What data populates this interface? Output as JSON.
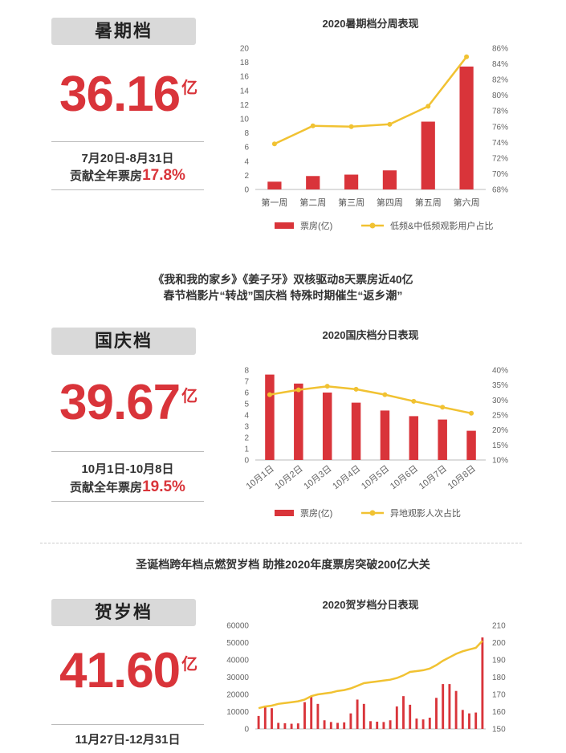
{
  "summer": {
    "label": "暑期档",
    "amount": "36.16",
    "unit": "亿",
    "dates": "7月20日-8月31日",
    "contrib_prefix": "贡献全年票房",
    "contrib_value": "17.8%"
  },
  "caption1": {
    "line1": "《我和我的家乡》《姜子牙》双核驱动8天票房近40亿",
    "line2": "春节档影片“转战”国庆档 特殊时期催生“返乡潮”"
  },
  "national": {
    "label": "国庆档",
    "amount": "39.67",
    "unit": "亿",
    "dates": "10月1日-10月8日",
    "contrib_prefix": "贡献全年票房",
    "contrib_value": "19.5%"
  },
  "caption2": {
    "line1": "圣诞档跨年档点燃贺岁档 助推2020年度票房突破200亿大关"
  },
  "newyear": {
    "label": "贺岁档",
    "amount": "41.60",
    "unit": "亿",
    "dates": "11月27日-12月31日"
  },
  "colors": {
    "bar": "#d9343a",
    "line": "#f1c232"
  },
  "chart_data": [
    {
      "type": "bar",
      "title": "2020暑期档分周表现",
      "categories": [
        "第一周",
        "第二周",
        "第三周",
        "第四周",
        "第五周",
        "第六周"
      ],
      "series": [
        {
          "name": "票房(亿)",
          "type": "bar",
          "axis": "left",
          "values": [
            1.1,
            1.9,
            2.1,
            2.7,
            9.6,
            17.4
          ]
        },
        {
          "name": "低频&中低频观影用户占比",
          "type": "line",
          "axis": "right",
          "values": [
            73.8,
            76.1,
            76.0,
            76.3,
            78.6,
            84.9
          ]
        }
      ],
      "ylim": [
        0,
        20
      ],
      "yticks": [
        "0",
        "2",
        "4",
        "6",
        "8",
        "10",
        "12",
        "14",
        "16",
        "18",
        "20"
      ],
      "y2lim": [
        68,
        86
      ],
      "y2ticks": [
        "68%",
        "70%",
        "72%",
        "74%",
        "76%",
        "78%",
        "80%",
        "82%",
        "84%",
        "86%"
      ],
      "legend": "bottom",
      "grid": false
    },
    {
      "type": "bar",
      "title": "2020国庆档分日表现",
      "categories": [
        "10月1日",
        "10月2日",
        "10月3日",
        "10月4日",
        "10月5日",
        "10月6日",
        "10月7日",
        "10月8日"
      ],
      "series": [
        {
          "name": "票房(亿)",
          "type": "bar",
          "axis": "left",
          "values": [
            7.6,
            6.8,
            6.0,
            5.1,
            4.4,
            3.9,
            3.6,
            2.6
          ]
        },
        {
          "name": "异地观影人次占比",
          "type": "line",
          "axis": "right",
          "values": [
            31.8,
            33.4,
            34.6,
            33.6,
            31.8,
            29.6,
            27.6,
            25.6
          ]
        }
      ],
      "ylim": [
        0,
        8
      ],
      "yticks": [
        "0",
        "1",
        "2",
        "3",
        "4",
        "5",
        "6",
        "7",
        "8"
      ],
      "y2lim": [
        10,
        40
      ],
      "y2ticks": [
        "10%",
        "15%",
        "20%",
        "25%",
        "30%",
        "35%",
        "40%"
      ],
      "legend": "bottom",
      "grid": false
    },
    {
      "type": "bar",
      "title": "2020贺岁档分日表现",
      "categories": [
        "",
        "",
        "",
        "",
        "",
        "",
        "",
        "",
        "",
        "",
        "",
        "",
        "",
        "",
        "",
        "",
        "",
        "",
        "",
        "",
        "",
        "",
        "",
        "",
        "",
        "",
        "",
        "",
        "",
        "",
        "",
        "",
        "",
        "",
        ""
      ],
      "series": [
        {
          "name": "",
          "type": "bar",
          "axis": "left",
          "values": [
            7500,
            13500,
            12000,
            3500,
            3300,
            3000,
            3200,
            15500,
            19000,
            14500,
            5000,
            4000,
            3500,
            3800,
            9000,
            17000,
            14500,
            4500,
            4200,
            4000,
            5000,
            13000,
            19000,
            14000,
            6000,
            5500,
            6500,
            18000,
            26000,
            26000,
            22000,
            11000,
            9000,
            9500,
            53000
          ]
        },
        {
          "name": "",
          "type": "line",
          "axis": "right",
          "values": [
            162,
            163,
            163.5,
            164.5,
            165,
            165.5,
            166,
            167,
            169,
            170,
            170.5,
            171,
            172,
            172.5,
            173.5,
            175,
            176.5,
            177,
            177.5,
            178,
            178.5,
            179.5,
            181,
            183,
            183.5,
            184,
            185,
            187,
            189.5,
            191.5,
            193.5,
            195,
            196,
            197,
            201
          ]
        }
      ],
      "ylim": [
        0,
        60000
      ],
      "yticks": [
        "0",
        "10000",
        "20000",
        "30000",
        "40000",
        "50000",
        "60000"
      ],
      "y2lim": [
        150,
        210
      ],
      "y2ticks": [
        "150",
        "160",
        "170",
        "180",
        "190",
        "200",
        "210"
      ],
      "grid": false
    }
  ]
}
